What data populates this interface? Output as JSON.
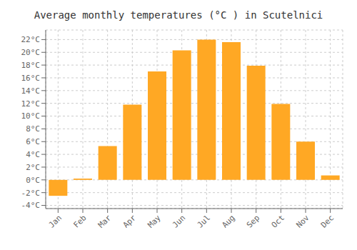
{
  "chart_data": {
    "type": "bar",
    "title": "Average monthly temperatures (°C ) in Scutelnici",
    "categories": [
      "Jan",
      "Feb",
      "Mar",
      "Apr",
      "May",
      "Jun",
      "Jul",
      "Aug",
      "Sep",
      "Oct",
      "Nov",
      "Dec"
    ],
    "values": [
      -2.5,
      0.2,
      5.3,
      11.8,
      17.0,
      20.3,
      22.0,
      21.6,
      17.9,
      11.9,
      6.0,
      0.7
    ],
    "color": "#FFA824",
    "ylim": [
      -4.5,
      23.5
    ],
    "yticks": [
      {
        "value": -4,
        "label": "-4°C"
      },
      {
        "value": -2,
        "label": "-2°C"
      },
      {
        "value": 0,
        "label": "0°C"
      },
      {
        "value": 2,
        "label": "2°C"
      },
      {
        "value": 4,
        "label": "4°C"
      },
      {
        "value": 6,
        "label": "6°C"
      },
      {
        "value": 8,
        "label": "8°C"
      },
      {
        "value": 10,
        "label": "10°C"
      },
      {
        "value": 12,
        "label": "12°C"
      },
      {
        "value": 14,
        "label": "14°C"
      },
      {
        "value": 16,
        "label": "16°C"
      },
      {
        "value": 18,
        "label": "18°C"
      },
      {
        "value": 20,
        "label": "20°C"
      },
      {
        "value": 22,
        "label": "22°C"
      }
    ],
    "grid": true
  }
}
